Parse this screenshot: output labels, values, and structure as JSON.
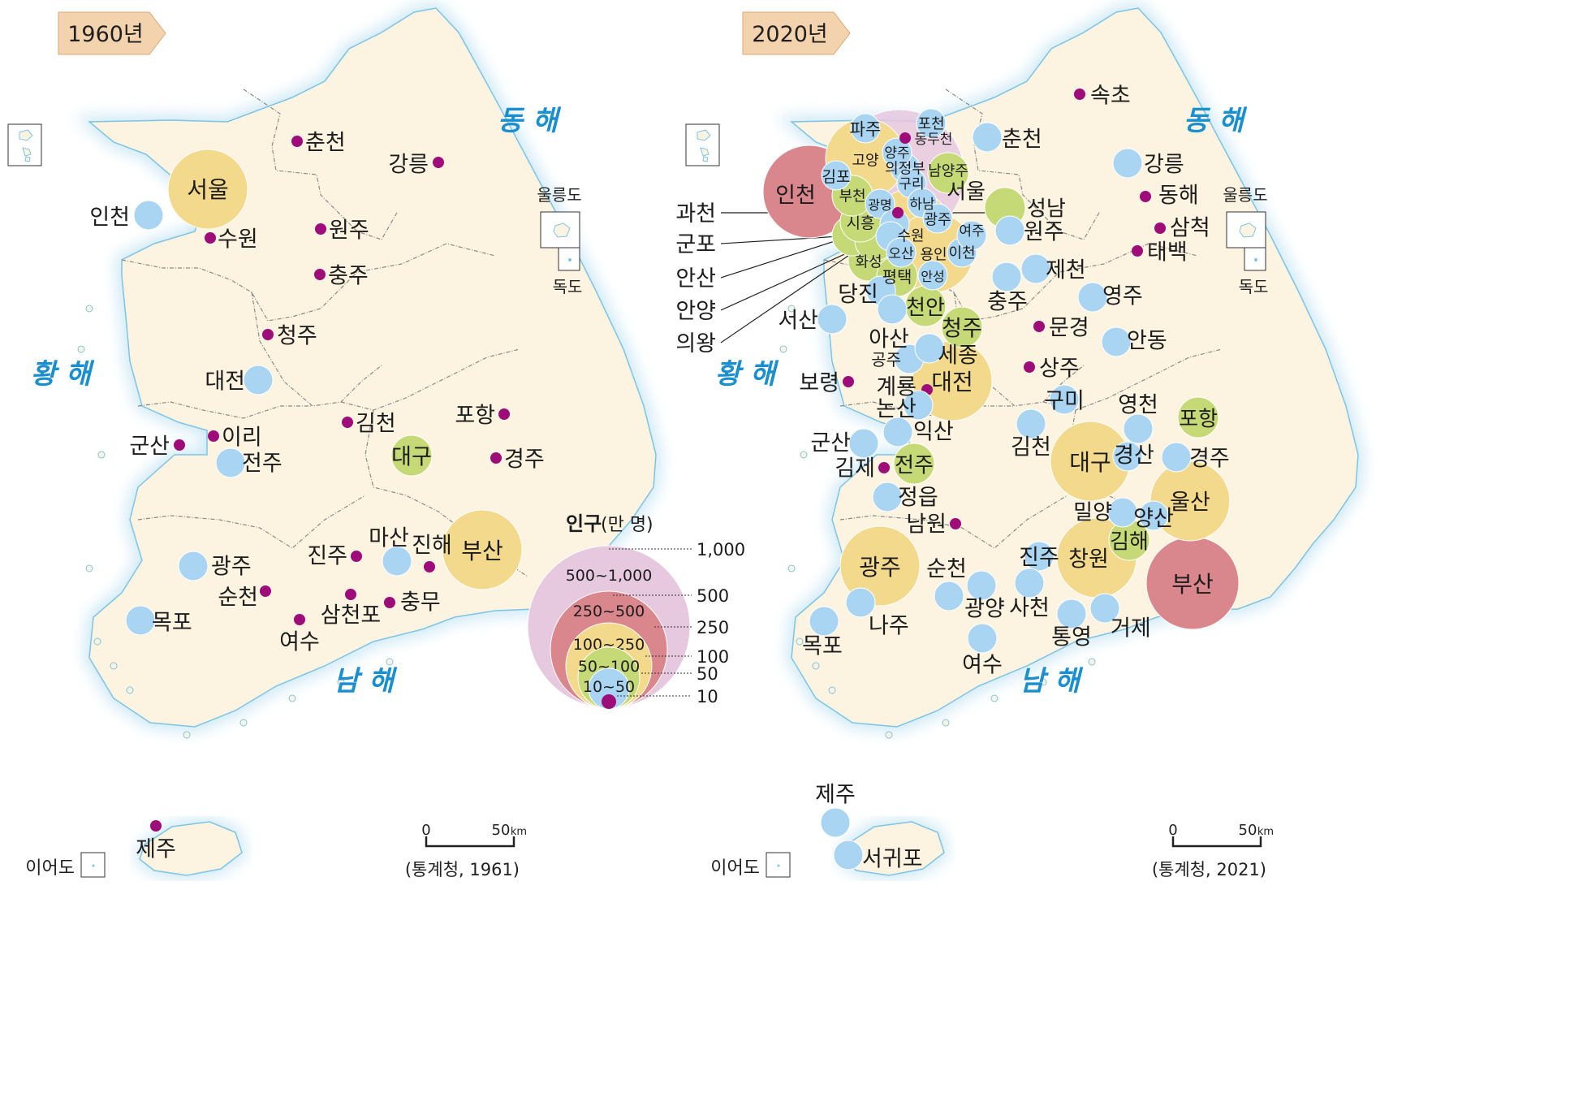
{
  "colors": {
    "land": "#fcf3e0",
    "sea_edge": "#cfe9f6",
    "coast": "#7cc4e8",
    "border": "#8a8a8a",
    "sea_text": "#1a8fd0",
    "badge": "#f3d3ad",
    "badge_edge": "#d9a978",
    "c_10_50": "#a9d4f2",
    "c_50_100": "#c5da76",
    "c_100_250": "#f2d98c",
    "c_250_500": "#d9868c",
    "c_500_1000": "#e6c8df",
    "dot_lt10": "#9d0c78"
  },
  "legend": {
    "title": "인구",
    "unit": "(만 명)",
    "classes": [
      {
        "label": "500~1,000",
        "color_key": "c_500_1000"
      },
      {
        "label": "250~500",
        "color_key": "c_250_500"
      },
      {
        "label": "100~250",
        "color_key": "c_100_250"
      },
      {
        "label": "50~100",
        "color_key": "c_50_100"
      },
      {
        "label": "10~50",
        "color_key": "c_10_50"
      }
    ],
    "thresholds": [
      "1,000",
      "500",
      "250",
      "100",
      "50",
      "10"
    ]
  },
  "maps": [
    {
      "year_label": "1960년",
      "source": "(통계청, 1961)",
      "scale": {
        "zero": "0",
        "max": "50",
        "unit": "km"
      },
      "seas": {
        "east": "동 해",
        "west": "황 해",
        "south": "남 해"
      },
      "islands": {
        "ulleung": "울릉도",
        "dokdo": "독도",
        "ieodo": "이어도"
      },
      "cities": [
        {
          "name": "서울",
          "cls": "100_250"
        },
        {
          "name": "인천",
          "cls": "10_50"
        },
        {
          "name": "수원",
          "cls": "lt10"
        },
        {
          "name": "춘천",
          "cls": "lt10"
        },
        {
          "name": "강릉",
          "cls": "lt10"
        },
        {
          "name": "원주",
          "cls": "lt10"
        },
        {
          "name": "충주",
          "cls": "lt10"
        },
        {
          "name": "청주",
          "cls": "lt10"
        },
        {
          "name": "대전",
          "cls": "10_50"
        },
        {
          "name": "군산",
          "cls": "lt10"
        },
        {
          "name": "이리",
          "cls": "lt10"
        },
        {
          "name": "전주",
          "cls": "10_50"
        },
        {
          "name": "김천",
          "cls": "lt10"
        },
        {
          "name": "대구",
          "cls": "50_100"
        },
        {
          "name": "포항",
          "cls": "lt10"
        },
        {
          "name": "경주",
          "cls": "lt10"
        },
        {
          "name": "광주",
          "cls": "10_50"
        },
        {
          "name": "순천",
          "cls": "lt10"
        },
        {
          "name": "목포",
          "cls": "10_50"
        },
        {
          "name": "여수",
          "cls": "lt10"
        },
        {
          "name": "진주",
          "cls": "lt10"
        },
        {
          "name": "마산",
          "cls": "10_50"
        },
        {
          "name": "진해",
          "cls": "lt10"
        },
        {
          "name": "부산",
          "cls": "100_250"
        },
        {
          "name": "삼천포",
          "cls": "lt10"
        },
        {
          "name": "충무",
          "cls": "lt10"
        },
        {
          "name": "제주",
          "cls": "lt10"
        }
      ]
    },
    {
      "year_label": "2020년",
      "source": "(통계청, 2021)",
      "scale": {
        "zero": "0",
        "max": "50",
        "unit": "km"
      },
      "seas": {
        "east": "동 해",
        "west": "황 해",
        "south": "남 해"
      },
      "islands": {
        "ulleung": "울릉도",
        "dokdo": "독도",
        "ieodo": "이어도"
      },
      "cities": [
        {
          "name": "서울",
          "cls": "500_1000"
        },
        {
          "name": "인천",
          "cls": "250_500"
        },
        {
          "name": "부산",
          "cls": "250_500"
        },
        {
          "name": "대구",
          "cls": "100_250"
        },
        {
          "name": "대전",
          "cls": "100_250"
        },
        {
          "name": "광주",
          "cls": "100_250"
        },
        {
          "name": "울산",
          "cls": "100_250"
        },
        {
          "name": "창원",
          "cls": "100_250"
        },
        {
          "name": "수원",
          "cls": "100_250"
        },
        {
          "name": "고양",
          "cls": "100_250"
        },
        {
          "name": "용인",
          "cls": "100_250"
        },
        {
          "name": "성남",
          "cls": "50_100"
        },
        {
          "name": "청주",
          "cls": "50_100"
        },
        {
          "name": "천안",
          "cls": "50_100"
        },
        {
          "name": "전주",
          "cls": "50_100"
        },
        {
          "name": "포항",
          "cls": "50_100"
        },
        {
          "name": "김해",
          "cls": "50_100"
        },
        {
          "name": "화성",
          "cls": "50_100"
        },
        {
          "name": "남양주",
          "cls": "50_100"
        },
        {
          "name": "안산",
          "cls": "50_100"
        },
        {
          "name": "안양",
          "cls": "50_100"
        },
        {
          "name": "평택",
          "cls": "50_100"
        },
        {
          "name": "시흥",
          "cls": "50_100"
        },
        {
          "name": "부천",
          "cls": "50_100"
        },
        {
          "name": "파주",
          "cls": "10_50"
        },
        {
          "name": "김포",
          "cls": "10_50"
        },
        {
          "name": "의정부",
          "cls": "10_50"
        },
        {
          "name": "양주",
          "cls": "10_50"
        },
        {
          "name": "구리",
          "cls": "10_50"
        },
        {
          "name": "하남",
          "cls": "10_50"
        },
        {
          "name": "광명",
          "cls": "10_50"
        },
        {
          "name": "광주",
          "cls": "10_50"
        },
        {
          "name": "군포",
          "cls": "10_50"
        },
        {
          "name": "의왕",
          "cls": "10_50"
        },
        {
          "name": "오산",
          "cls": "10_50"
        },
        {
          "name": "이천",
          "cls": "10_50"
        },
        {
          "name": "안성",
          "cls": "10_50"
        },
        {
          "name": "여주",
          "cls": "10_50"
        },
        {
          "name": "포천",
          "cls": "10_50"
        },
        {
          "name": "동두천",
          "cls": "lt10"
        },
        {
          "name": "과천",
          "cls": "lt10"
        },
        {
          "name": "춘천",
          "cls": "10_50"
        },
        {
          "name": "원주",
          "cls": "10_50"
        },
        {
          "name": "강릉",
          "cls": "10_50"
        },
        {
          "name": "속초",
          "cls": "lt10"
        },
        {
          "name": "동해",
          "cls": "lt10"
        },
        {
          "name": "삼척",
          "cls": "lt10"
        },
        {
          "name": "태백",
          "cls": "lt10"
        },
        {
          "name": "제천",
          "cls": "10_50"
        },
        {
          "name": "충주",
          "cls": "10_50"
        },
        {
          "name": "영주",
          "cls": "10_50"
        },
        {
          "name": "안동",
          "cls": "10_50"
        },
        {
          "name": "문경",
          "cls": "lt10"
        },
        {
          "name": "상주",
          "cls": "lt10"
        },
        {
          "name": "구미",
          "cls": "10_50"
        },
        {
          "name": "김천",
          "cls": "10_50"
        },
        {
          "name": "영천",
          "cls": "10_50"
        },
        {
          "name": "경산",
          "cls": "10_50"
        },
        {
          "name": "경주",
          "cls": "10_50"
        },
        {
          "name": "양산",
          "cls": "10_50"
        },
        {
          "name": "밀양",
          "cls": "10_50"
        },
        {
          "name": "진주",
          "cls": "10_50"
        },
        {
          "name": "사천",
          "cls": "10_50"
        },
        {
          "name": "통영",
          "cls": "10_50"
        },
        {
          "name": "거제",
          "cls": "10_50"
        },
        {
          "name": "당진",
          "cls": "10_50"
        },
        {
          "name": "서산",
          "cls": "10_50"
        },
        {
          "name": "아산",
          "cls": "10_50"
        },
        {
          "name": "공주",
          "cls": "10_50"
        },
        {
          "name": "세종",
          "cls": "10_50"
        },
        {
          "name": "계룡",
          "cls": "lt10"
        },
        {
          "name": "논산",
          "cls": "10_50"
        },
        {
          "name": "보령",
          "cls": "lt10"
        },
        {
          "name": "익산",
          "cls": "10_50"
        },
        {
          "name": "군산",
          "cls": "10_50"
        },
        {
          "name": "김제",
          "cls": "lt10"
        },
        {
          "name": "정읍",
          "cls": "10_50"
        },
        {
          "name": "남원",
          "cls": "lt10"
        },
        {
          "name": "순천",
          "cls": "10_50"
        },
        {
          "name": "광양",
          "cls": "10_50"
        },
        {
          "name": "여수",
          "cls": "10_50"
        },
        {
          "name": "나주",
          "cls": "10_50"
        },
        {
          "name": "목포",
          "cls": "10_50"
        },
        {
          "name": "제주",
          "cls": "10_50"
        },
        {
          "name": "서귀포",
          "cls": "10_50"
        }
      ]
    }
  ]
}
